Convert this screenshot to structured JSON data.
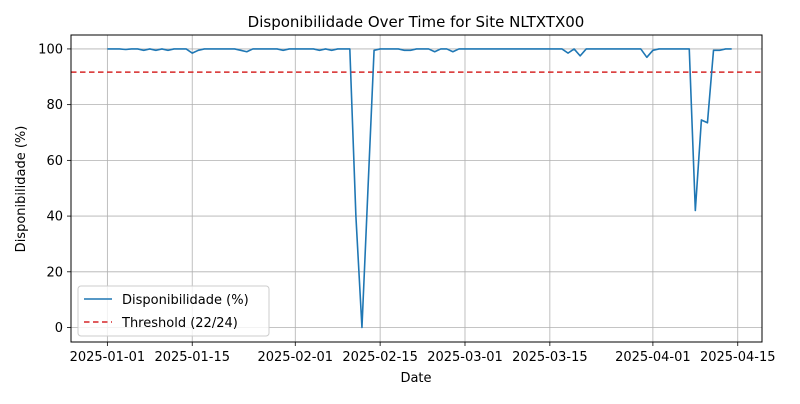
{
  "colors": {
    "line": "#1f77b4",
    "threshold": "#d62728",
    "grid": "#b0b0b0",
    "axis": "#000000",
    "legend_border": "#cccccc"
  },
  "chart_data": {
    "type": "line",
    "title": "Disponibilidade Over Time for Site NLTXTX00",
    "xlabel": "Date",
    "ylabel": "Disponibilidade (%)",
    "xlim": [
      "2024-12-26",
      "2025-04-19"
    ],
    "ylim": [
      -5.2,
      105
    ],
    "x_ticks": [
      {
        "date": "2025-01-01",
        "label": "2025-01-01"
      },
      {
        "date": "2025-01-15",
        "label": "2025-01-15"
      },
      {
        "date": "2025-02-01",
        "label": "2025-02-01"
      },
      {
        "date": "2025-02-15",
        "label": "2025-02-15"
      },
      {
        "date": "2025-03-01",
        "label": "2025-03-01"
      },
      {
        "date": "2025-03-15",
        "label": "2025-03-15"
      },
      {
        "date": "2025-04-01",
        "label": "2025-04-01"
      },
      {
        "date": "2025-04-15",
        "label": "2025-04-15"
      }
    ],
    "y_ticks": [
      0,
      20,
      40,
      60,
      80,
      100
    ],
    "grid": true,
    "legend_position": "lower-left",
    "series": [
      {
        "name": "Disponibilidade (%)",
        "style": "solid",
        "points": [
          [
            "2025-01-01",
            100
          ],
          [
            "2025-01-02",
            100
          ],
          [
            "2025-01-03",
            100
          ],
          [
            "2025-01-04",
            99.8
          ],
          [
            "2025-01-05",
            100
          ],
          [
            "2025-01-06",
            100
          ],
          [
            "2025-01-07",
            99.5
          ],
          [
            "2025-01-08",
            100
          ],
          [
            "2025-01-09",
            99.5
          ],
          [
            "2025-01-10",
            100
          ],
          [
            "2025-01-11",
            99.5
          ],
          [
            "2025-01-12",
            100
          ],
          [
            "2025-01-13",
            100
          ],
          [
            "2025-01-14",
            100
          ],
          [
            "2025-01-15",
            98.5
          ],
          [
            "2025-01-16",
            99.5
          ],
          [
            "2025-01-17",
            100
          ],
          [
            "2025-01-18",
            100
          ],
          [
            "2025-01-19",
            100
          ],
          [
            "2025-01-20",
            100
          ],
          [
            "2025-01-21",
            100
          ],
          [
            "2025-01-22",
            100
          ],
          [
            "2025-01-23",
            99.5
          ],
          [
            "2025-01-24",
            99
          ],
          [
            "2025-01-25",
            100
          ],
          [
            "2025-01-26",
            100
          ],
          [
            "2025-01-27",
            100
          ],
          [
            "2025-01-28",
            100
          ],
          [
            "2025-01-29",
            100
          ],
          [
            "2025-01-30",
            99.5
          ],
          [
            "2025-01-31",
            100
          ],
          [
            "2025-02-01",
            100
          ],
          [
            "2025-02-02",
            100
          ],
          [
            "2025-02-03",
            100
          ],
          [
            "2025-02-04",
            100
          ],
          [
            "2025-02-05",
            99.5
          ],
          [
            "2025-02-06",
            100
          ],
          [
            "2025-02-07",
            99.5
          ],
          [
            "2025-02-08",
            100
          ],
          [
            "2025-02-09",
            100
          ],
          [
            "2025-02-10",
            100
          ],
          [
            "2025-02-11",
            40
          ],
          [
            "2025-02-12",
            0
          ],
          [
            "2025-02-13",
            50
          ],
          [
            "2025-02-14",
            99.5
          ],
          [
            "2025-02-15",
            100
          ],
          [
            "2025-02-16",
            100
          ],
          [
            "2025-02-17",
            100
          ],
          [
            "2025-02-18",
            100
          ],
          [
            "2025-02-19",
            99.5
          ],
          [
            "2025-02-20",
            99.5
          ],
          [
            "2025-02-21",
            100
          ],
          [
            "2025-02-22",
            100
          ],
          [
            "2025-02-23",
            100
          ],
          [
            "2025-02-24",
            99
          ],
          [
            "2025-02-25",
            100
          ],
          [
            "2025-02-26",
            100
          ],
          [
            "2025-02-27",
            99
          ],
          [
            "2025-02-28",
            100
          ],
          [
            "2025-03-01",
            100
          ],
          [
            "2025-03-02",
            100
          ],
          [
            "2025-03-03",
            100
          ],
          [
            "2025-03-04",
            100
          ],
          [
            "2025-03-05",
            100
          ],
          [
            "2025-03-06",
            100
          ],
          [
            "2025-03-07",
            100
          ],
          [
            "2025-03-08",
            100
          ],
          [
            "2025-03-09",
            100
          ],
          [
            "2025-03-10",
            100
          ],
          [
            "2025-03-11",
            100
          ],
          [
            "2025-03-12",
            100
          ],
          [
            "2025-03-13",
            100
          ],
          [
            "2025-03-14",
            100
          ],
          [
            "2025-03-15",
            100
          ],
          [
            "2025-03-16",
            100
          ],
          [
            "2025-03-17",
            100
          ],
          [
            "2025-03-18",
            98.5
          ],
          [
            "2025-03-19",
            100
          ],
          [
            "2025-03-20",
            97.5
          ],
          [
            "2025-03-21",
            100
          ],
          [
            "2025-03-22",
            100
          ],
          [
            "2025-03-23",
            100
          ],
          [
            "2025-03-24",
            100
          ],
          [
            "2025-03-25",
            100
          ],
          [
            "2025-03-26",
            100
          ],
          [
            "2025-03-27",
            100
          ],
          [
            "2025-03-28",
            100
          ],
          [
            "2025-03-29",
            100
          ],
          [
            "2025-03-30",
            100
          ],
          [
            "2025-03-31",
            97
          ],
          [
            "2025-04-01",
            99.5
          ],
          [
            "2025-04-02",
            100
          ],
          [
            "2025-04-03",
            100
          ],
          [
            "2025-04-04",
            100
          ],
          [
            "2025-04-05",
            100
          ],
          [
            "2025-04-06",
            100
          ],
          [
            "2025-04-07",
            100
          ],
          [
            "2025-04-08",
            42
          ],
          [
            "2025-04-09",
            74.5
          ],
          [
            "2025-04-10",
            73.5
          ],
          [
            "2025-04-11",
            99.5
          ],
          [
            "2025-04-12",
            99.5
          ],
          [
            "2025-04-13",
            100
          ],
          [
            "2025-04-14",
            100
          ]
        ]
      },
      {
        "name": "Threshold (22/24)",
        "style": "dashed",
        "value": 91.67
      }
    ]
  }
}
